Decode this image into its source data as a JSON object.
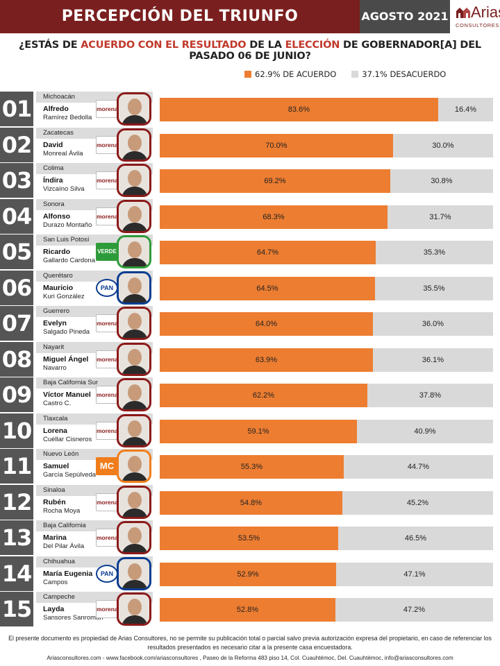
{
  "header": {
    "title": "PERCEPCIÓN DEL TRIUNFO",
    "date": "AGOSTO 2021",
    "logo_name": "Arias",
    "logo_sub": "CONSULTORES"
  },
  "question": {
    "p1": "¿ESTÁS DE ",
    "p2": "ACUERDO CON EL RESULTADO",
    "p3": " DE LA ",
    "p4": "ELECCIÓN",
    "p5": " DE GOBERNADOR[A] DEL PASADO 06 DE JUNIO?"
  },
  "colors": {
    "agree": "#ed7d31",
    "disagree": "#d9d9d9",
    "header_bg": "#7a1f1f",
    "rank_bg": "#555555"
  },
  "chart_data": {
    "type": "bar",
    "orientation": "horizontal",
    "stacked": true,
    "xlim": [
      0,
      100
    ],
    "legend": [
      {
        "label": "62.9% DE ACUERDO",
        "color": "#ed7d31"
      },
      {
        "label": "37.1% DESACUERDO",
        "color": "#d9d9d9"
      }
    ],
    "categories": [
      "01",
      "02",
      "03",
      "04",
      "05",
      "06",
      "07",
      "08",
      "09",
      "10",
      "11",
      "12",
      "13",
      "14",
      "15"
    ],
    "series": [
      {
        "values": [
          83.6,
          70.0,
          69.2,
          68.3,
          64.7,
          64.5,
          64.0,
          63.9,
          62.2,
          59.1,
          55.3,
          54.8,
          53.5,
          52.9,
          52.8
        ]
      },
      {
        "values": [
          16.4,
          30.0,
          30.8,
          31.7,
          35.3,
          35.5,
          36.0,
          36.1,
          37.8,
          40.9,
          44.7,
          45.2,
          46.5,
          47.1,
          47.2
        ]
      }
    ],
    "agree_labels": [
      "83.6%",
      "70.0%",
      "69.2%",
      "68.3%",
      "64.7%",
      "64.5%",
      "64.0%",
      "63.9%",
      "62.2%",
      "59.1%",
      "55.3%",
      "54.8%",
      "53.5%",
      "52.9%",
      "52.8%"
    ],
    "disagree_labels": [
      "16.4%",
      "30.0%",
      "30.8%",
      "31.7%",
      "35.3%",
      "35.5%",
      "36.0%",
      "36.1%",
      "37.8%",
      "40.9%",
      "44.7%",
      "45.2%",
      "46.5%",
      "47.1%",
      "47.2%"
    ]
  },
  "rows": [
    {
      "rank": "01",
      "state": "Michoacán",
      "first": "Alfredo",
      "last": "Ramírez Bedolla",
      "party": "morena",
      "party_label": "morena"
    },
    {
      "rank": "02",
      "state": "Zacatecas",
      "first": "David",
      "last": "Monreal Ávila",
      "party": "morena",
      "party_label": "morena"
    },
    {
      "rank": "03",
      "state": "Colima",
      "first": "Índira",
      "last": "Vizcaíno Silva",
      "party": "morena",
      "party_label": "morena"
    },
    {
      "rank": "04",
      "state": "Sonora",
      "first": "Alfonso",
      "last": "Durazo Montaño",
      "party": "morena",
      "party_label": "morena"
    },
    {
      "rank": "05",
      "state": "San Luis Potosí",
      "first": "Ricardo",
      "last": "Gallardo Cardona",
      "party": "verde",
      "party_label": "VERDE"
    },
    {
      "rank": "06",
      "state": "Querétaro",
      "first": "Mauricio",
      "last": "Kuri González",
      "party": "pan",
      "party_label": "PAN"
    },
    {
      "rank": "07",
      "state": "Guerrero",
      "first": "Evelyn",
      "last": "Salgado Pineda",
      "party": "morena",
      "party_label": "morena"
    },
    {
      "rank": "08",
      "state": "Nayarit",
      "first": "Miguel Ángel",
      "last": "Navarro",
      "party": "morena",
      "party_label": "morena"
    },
    {
      "rank": "09",
      "state": "Baja California Sur",
      "first": "Víctor Manuel",
      "last": "Castro C.",
      "party": "morena",
      "party_label": "morena"
    },
    {
      "rank": "10",
      "state": "Tlaxcala",
      "first": "Lorena",
      "last": "Cuéllar Cisneros",
      "party": "morena",
      "party_label": "morena"
    },
    {
      "rank": "11",
      "state": "Nuevo León",
      "first": "Samuel",
      "last": "García Sepúlveda",
      "party": "mc",
      "party_label": "MC"
    },
    {
      "rank": "12",
      "state": "Sinaloa",
      "first": "Rubén",
      "last": "Rocha Moya",
      "party": "morena",
      "party_label": "morena"
    },
    {
      "rank": "13",
      "state": "Baja California",
      "first": "Marina",
      "last": "Del Pilar Ávila",
      "party": "morena",
      "party_label": "morena"
    },
    {
      "rank": "14",
      "state": "Chihuahua",
      "first": "María Eugenia",
      "last": "Campos",
      "party": "pan",
      "party_label": "PAN"
    },
    {
      "rank": "15",
      "state": "Campeche",
      "first": "Layda",
      "last": "Sansores Sanromán",
      "party": "morena",
      "party_label": "morena"
    }
  ],
  "footer": {
    "disclaimer": "El presente documento es propiedad de Arias Consultores, no se permite su publicación total o parcial salvo previa autorización expresa del propietario, en caso de referenciar los resultados presentados es necesario citar a la presente casa encuestadora.",
    "links": "Ariasconsultores.com  -  www.facebook.com/ariasconsultores , Paseo de la Reforma 483 piso 14, Col. Cuauhtémoc, Del. Cuauhtémoc, info@ariasconsultores.com"
  }
}
